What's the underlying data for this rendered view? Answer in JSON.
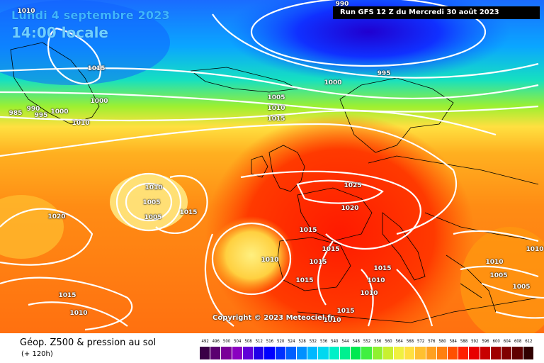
{
  "header": {
    "date": "Lundi 4 septembre 2023",
    "time": "14:00 locale",
    "run": "Run GFS 12 Z du Mercredi 30 août 2023"
  },
  "copyright": "Copyright © 2023 Meteociel.fr",
  "footer": {
    "title": "Géop. Z500 & pression au sol",
    "subtitle": "(+ 120h)"
  },
  "scale": {
    "ticks": [
      "492",
      "496",
      "500",
      "504",
      "508",
      "512",
      "516",
      "520",
      "524",
      "528",
      "532",
      "536",
      "540",
      "544",
      "548",
      "552",
      "556",
      "560",
      "564",
      "568",
      "572",
      "576",
      "580",
      "584",
      "588",
      "592",
      "596",
      "600",
      "604",
      "608",
      "612"
    ],
    "colors": [
      "#3a0046",
      "#5a0070",
      "#7a0098",
      "#8a00c0",
      "#6000d8",
      "#2000e8",
      "#0000ff",
      "#0030ff",
      "#0060ff",
      "#0090ff",
      "#00b8ff",
      "#00d8f0",
      "#00f0c8",
      "#00f090",
      "#00e850",
      "#40f040",
      "#90f030",
      "#c8f030",
      "#f0f040",
      "#ffe040",
      "#ffc030",
      "#ffa020",
      "#ff8010",
      "#ff5000",
      "#ff2000",
      "#e80000",
      "#c80000",
      "#a00000",
      "#800000",
      "#600000",
      "#300000"
    ]
  },
  "isobars": [
    "1010",
    "1015",
    "1000",
    "985",
    "990",
    "995",
    "1000",
    "1010",
    "1005",
    "1010",
    "1015",
    "990",
    "995",
    "1000",
    "1025",
    "1020",
    "1010",
    "1005",
    "1005",
    "1015",
    "1020",
    "1015",
    "1015",
    "1010",
    "1015",
    "1015",
    "1015",
    "1010",
    "1015",
    "1010",
    "1010",
    "1010",
    "1005",
    "1005",
    "1010",
    "1015",
    "1010"
  ],
  "colors": {
    "coast": "#000000",
    "isobar": "#ffffff"
  }
}
